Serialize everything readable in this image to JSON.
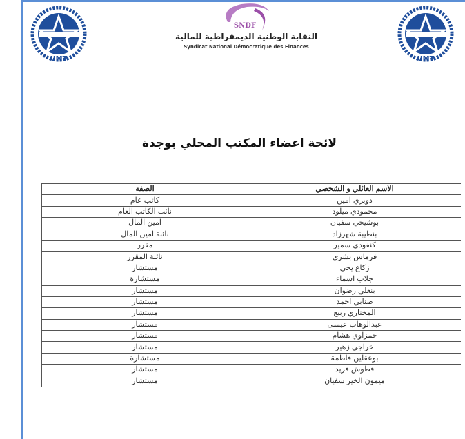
{
  "header": {
    "logo_left": "UMT",
    "logo_right": "UMT",
    "logo_center": "SNDF",
    "org_name_ar": "النقابة الوطنية الديمقراطية للمالية",
    "org_name_fr": "Syndicat National Démocratique des Finances",
    "colors": {
      "frame": "#5b8fd6",
      "umt_blue": "#1f4e9c",
      "sndf_purple": "#9b4fa8"
    }
  },
  "title": "لائحة اعضاء المكتب المحلي بوجدة",
  "table": {
    "columns": [
      "الاسم العائلي و الشخصي",
      "الصفة"
    ],
    "rows": [
      [
        "دويري امين",
        "كاتب عام"
      ],
      [
        "محمودي ميلود",
        "نائب الكاتب العام"
      ],
      [
        "بوشيخي سفيان",
        "امين المال"
      ],
      [
        "بنطيبة شهرزاد",
        "نائبة امين المال"
      ],
      [
        "كنفودي سمير",
        "مقرر"
      ],
      [
        "فرماس بشرى",
        "نائبة المقرر"
      ],
      [
        "زكاغ يحي",
        "مستشار"
      ],
      [
        "جلاب اسماء",
        "مستشارة"
      ],
      [
        "بنعلي رضوان",
        "مستشار"
      ],
      [
        "صنابي احمد",
        "مستشار"
      ],
      [
        "المختاري ربيع",
        "مستشار"
      ],
      [
        "عبدالوهاب عيسى",
        "مستشار"
      ],
      [
        "حمزاوي هشام",
        "مستشار"
      ],
      [
        "خراجي زهير",
        "مستشار"
      ],
      [
        "بوعقلين فاطمة",
        "مستشارة"
      ],
      [
        "قطوش فريد",
        "مستشار"
      ],
      [
        "ميمون الخير سفيان",
        "مستشار"
      ]
    ]
  }
}
